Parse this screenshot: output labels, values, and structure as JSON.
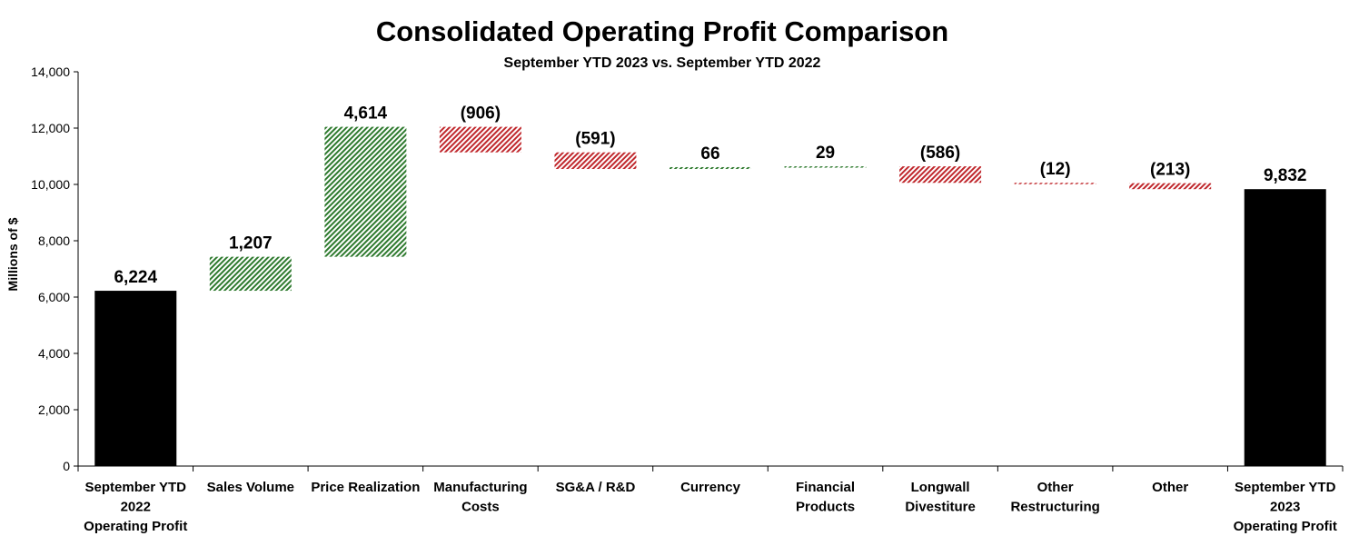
{
  "chart_data": {
    "type": "waterfall",
    "title": "Consolidated Operating Profit Comparison",
    "subtitle": "September YTD 2023 vs. September YTD 2022",
    "ylabel": "Millions of $",
    "ylim": [
      0,
      14000
    ],
    "yticks": [
      "0",
      "2,000",
      "4,000",
      "6,000",
      "8,000",
      "10,000",
      "12,000",
      "14,000"
    ],
    "ytick_values": [
      0,
      2000,
      4000,
      6000,
      8000,
      10000,
      12000,
      14000
    ],
    "grid": false,
    "categories": [
      [
        "September YTD",
        "2022",
        "Operating Profit"
      ],
      [
        "Sales Volume"
      ],
      [
        "Price Realization"
      ],
      [
        "Manufacturing",
        "Costs"
      ],
      [
        "SG&A / R&D"
      ],
      [
        "Currency"
      ],
      [
        "Financial",
        "Products"
      ],
      [
        "Longwall",
        "Divestiture"
      ],
      [
        "Other",
        "Restructuring"
      ],
      [
        "Other"
      ],
      [
        "September YTD",
        "2023",
        "Operating Profit"
      ]
    ],
    "values": [
      6224,
      1207,
      4614,
      -906,
      -591,
      66,
      29,
      -586,
      -12,
      -213,
      9832
    ],
    "kinds": [
      "total",
      "delta",
      "delta",
      "delta",
      "delta",
      "delta",
      "delta",
      "delta",
      "delta",
      "delta",
      "total"
    ],
    "labels": [
      "6,224",
      "1,207",
      "4,614",
      "(906)",
      "(591)",
      "66",
      "29",
      "(586)",
      "(12)",
      "(213)",
      "9,832"
    ],
    "colors": {
      "total": "#000000",
      "increase": "#2e7a2e",
      "decrease": "#c0282d"
    }
  }
}
